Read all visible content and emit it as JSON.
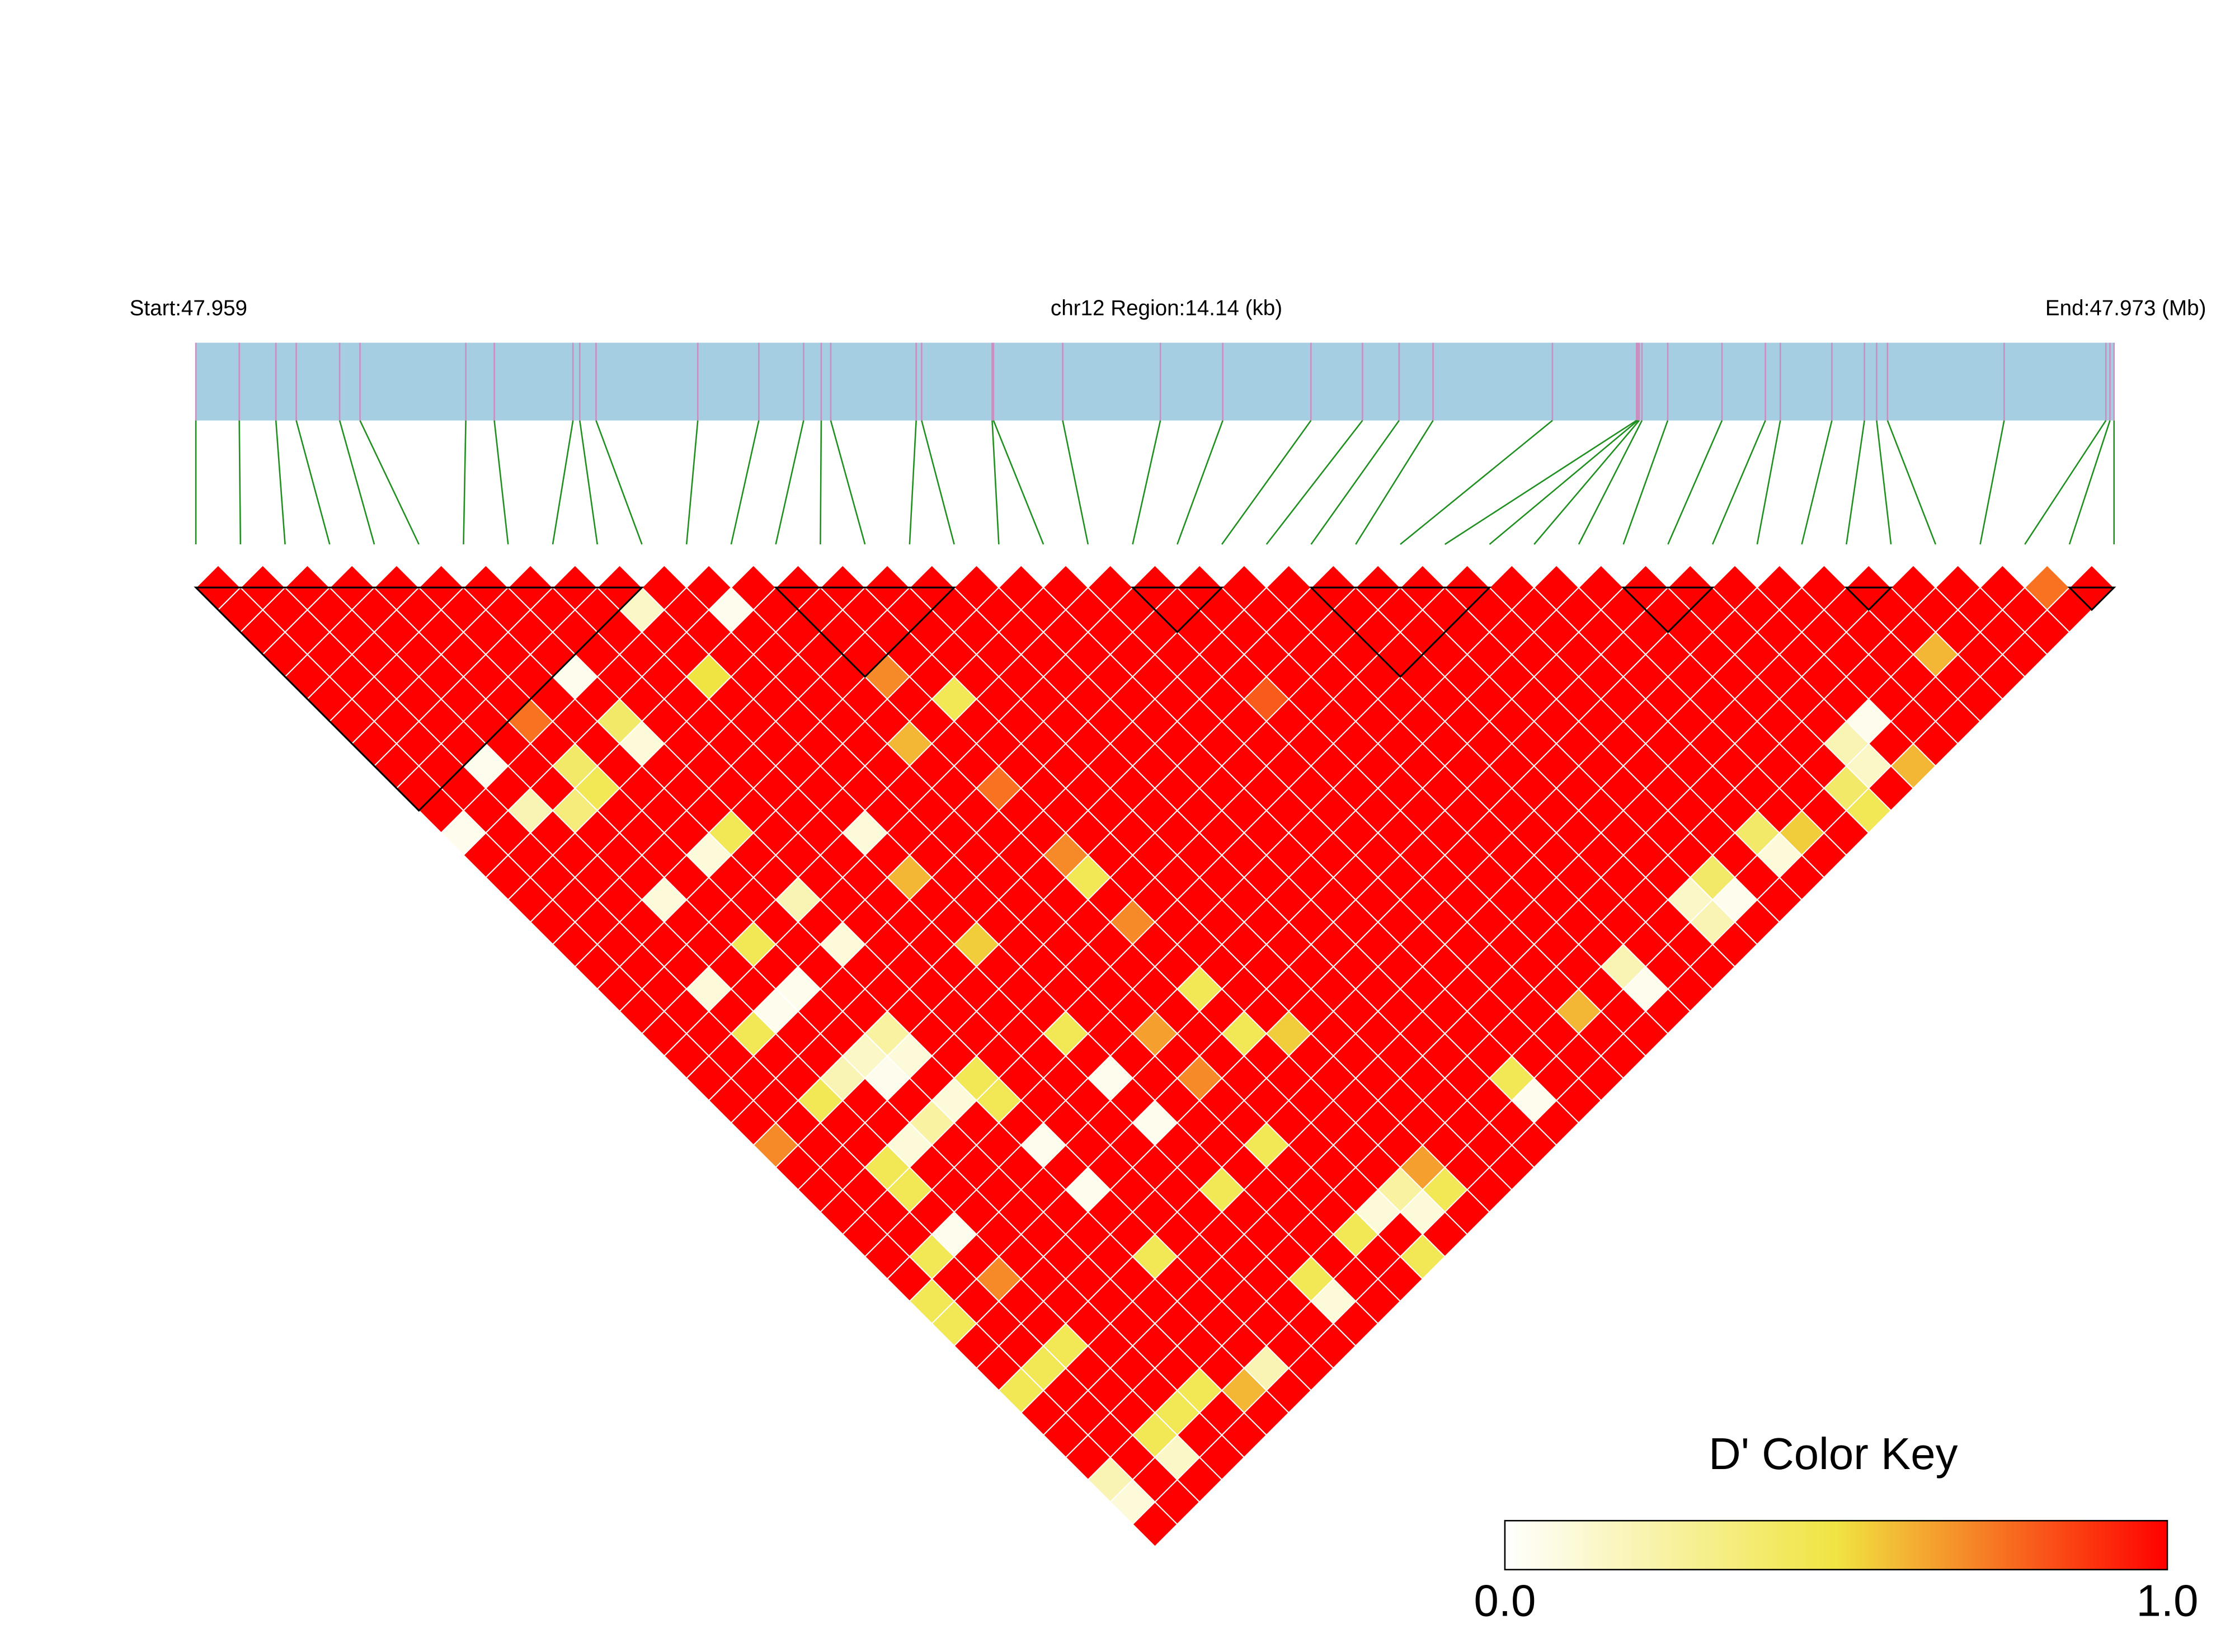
{
  "chart_data": {
    "type": "ld_heatmap",
    "start_label": "Start:47.959",
    "region_label": "chr12 Region:14.14 (kb)",
    "end_label": "End:47.973 (Mb)",
    "xlim": [
      0,
      14.14
    ],
    "bar_color": "#a6cee3",
    "snp_line_color": "#c98fbf",
    "connector_color": "#1f8f1f",
    "block_color": "#000000",
    "snp_positions_kb": [
      0,
      0.32,
      0.59,
      0.74,
      1.06,
      1.21,
      1.99,
      2.2,
      2.78,
      2.83,
      2.95,
      3.7,
      4.15,
      4.48,
      4.61,
      4.68,
      5.31,
      5.35,
      5.87,
      5.88,
      6.39,
      7.11,
      7.57,
      8.22,
      8.6,
      8.87,
      9.12,
      10.0,
      10.62,
      10.63,
      10.64,
      10.66,
      10.85,
      11.25,
      11.57,
      11.68,
      12.06,
      12.3,
      12.39,
      12.47,
      13.33,
      14.08,
      14.11,
      14.14
    ],
    "dprime": [
      [
        1,
        1,
        1,
        1,
        1,
        1,
        1,
        1,
        1,
        1,
        1,
        0.05,
        1,
        1,
        1,
        1,
        1,
        1,
        1,
        1,
        1,
        1,
        1,
        1,
        1,
        0.7,
        1,
        1,
        1,
        1,
        1,
        1,
        0.45,
        0.45,
        1,
        1,
        0.45,
        1,
        1,
        1,
        0.2,
        0.1,
        1
      ],
      [
        1,
        1,
        1,
        1,
        1,
        1,
        1,
        1,
        1,
        1,
        1,
        1,
        1,
        1,
        1,
        1,
        1,
        1,
        1,
        1,
        1,
        1,
        1,
        1,
        1,
        1,
        1,
        1,
        1,
        1,
        0.45,
        1,
        1,
        1,
        1,
        0.45,
        1,
        1,
        1,
        1,
        1,
        1
      ],
      [
        1,
        1,
        1,
        1,
        1,
        1,
        1,
        1,
        0.05,
        1,
        0.2,
        1,
        1,
        1,
        1,
        1,
        1,
        1,
        0.1,
        1,
        0.45,
        1,
        1,
        0.45,
        1,
        1,
        0.45,
        0.45,
        1,
        0.05,
        1,
        0.7,
        1,
        1,
        0.45,
        1,
        1,
        1,
        0.45,
        0.15,
        1
      ],
      [
        1,
        1,
        1,
        1,
        1,
        1,
        1,
        1,
        1,
        1,
        0.35,
        1,
        1,
        1,
        0.1,
        1,
        1,
        1,
        1,
        0.05,
        1,
        1,
        0.2,
        1,
        1,
        0.1,
        1,
        1,
        1,
        1,
        1,
        1,
        1,
        1,
        1,
        1,
        1,
        0.45,
        1,
        1
      ],
      [
        1,
        1,
        1,
        1,
        1,
        1,
        0.75,
        1,
        0.4,
        0.45,
        1,
        1,
        1,
        1,
        1,
        1,
        0.45,
        1,
        0.05,
        1,
        1,
        0.15,
        0.05,
        1,
        0.25,
        1,
        1,
        1,
        1,
        1,
        1,
        1,
        1,
        1,
        1,
        1,
        0.45,
        1,
        1
      ],
      [
        1,
        1,
        1,
        1,
        1,
        1,
        1,
        1,
        1,
        1,
        1,
        1,
        0.1,
        1,
        1,
        1,
        1,
        1,
        1,
        1,
        0.25,
        0.1,
        1,
        0.1,
        1,
        1,
        1,
        1,
        1,
        1,
        1,
        1,
        1,
        1,
        1,
        1,
        0.6,
        1
      ],
      [
        1,
        1,
        1,
        1,
        0.05,
        1,
        0.4,
        0.1,
        1,
        1,
        1,
        0.45,
        1,
        1,
        0.2,
        1,
        0.1,
        1,
        1,
        1,
        1,
        1,
        0.45,
        0.45,
        1,
        0.05,
        1,
        0.05,
        1,
        1,
        0.45,
        1,
        1,
        1,
        1,
        0.2,
        1
      ],
      [
        1,
        1,
        1,
        1,
        1,
        1,
        1,
        1,
        1,
        1,
        1,
        1,
        1,
        1,
        1,
        1,
        1,
        1,
        1,
        1,
        1,
        1,
        1,
        1,
        1,
        1,
        1,
        1,
        1,
        1,
        1,
        1,
        1,
        1,
        1,
        1
      ],
      [
        1,
        1,
        1,
        1,
        1,
        1,
        1,
        1,
        1,
        1,
        1,
        1,
        1,
        1,
        1,
        1,
        1,
        1,
        1,
        1,
        1,
        1,
        1,
        1,
        1,
        1,
        1,
        1,
        1,
        1,
        1,
        1,
        1,
        1,
        1
      ],
      [
        1,
        0.15,
        1,
        1,
        0.5,
        1,
        1,
        1,
        1,
        1,
        1,
        0.1,
        1,
        0.6,
        1,
        1,
        0.55,
        1,
        1,
        1,
        0.45,
        1,
        0.05,
        1,
        0.05,
        1,
        1,
        0.45,
        1,
        1,
        1,
        0.45,
        0.1,
        1
      ],
      [
        1,
        1,
        1,
        1,
        1,
        1,
        1,
        1,
        1,
        1,
        1,
        1,
        1,
        1,
        1,
        1,
        1,
        1,
        1,
        1,
        1,
        1,
        1,
        1,
        1,
        1,
        1,
        1,
        1,
        1,
        1,
        1,
        1
      ],
      [
        1,
        0.05,
        1,
        1,
        1,
        1,
        1,
        1,
        1,
        1,
        1,
        1,
        1,
        1,
        1,
        1,
        1,
        1,
        1,
        1,
        0.65,
        1,
        0.7,
        1,
        1,
        0.45,
        1,
        1,
        1,
        0.45,
        1,
        1
      ],
      [
        1,
        1,
        1,
        1,
        1,
        1,
        1,
        0.6,
        1,
        1,
        1,
        1,
        1,
        1,
        1,
        1,
        1,
        1,
        1,
        1,
        1,
        1,
        1,
        1,
        1,
        1,
        1,
        1,
        0.1,
        1,
        0.45
      ],
      [
        1,
        1,
        1,
        1,
        0.7,
        1,
        1,
        1,
        1,
        0.75,
        1,
        1,
        0.7,
        0.45,
        1,
        0.7,
        1,
        1,
        0.45,
        1,
        0.45,
        1,
        1,
        1,
        1,
        1,
        1,
        0.25,
        0.1,
        1
      ],
      [
        1,
        1,
        1,
        1,
        1,
        0.45,
        1,
        1,
        1,
        1,
        1,
        1,
        1,
        1,
        1,
        1,
        1,
        1,
        1,
        1,
        0.55,
        1,
        1,
        1,
        1,
        1,
        0.65,
        0.45,
        1
      ],
      [
        1,
        1,
        1,
        1,
        1,
        1,
        1,
        1,
        1,
        1,
        1,
        1,
        1,
        1,
        1,
        1,
        1,
        1,
        1,
        1,
        1,
        1,
        1,
        1,
        1,
        1,
        1,
        1
      ],
      [
        1,
        1,
        1,
        1,
        1,
        1,
        1,
        1,
        1,
        1,
        1,
        1,
        1,
        1,
        1,
        1,
        1,
        1,
        1,
        1,
        1,
        1,
        1,
        1,
        1,
        1,
        1
      ],
      [
        1,
        1,
        1,
        1,
        1,
        1,
        1,
        1,
        1,
        1,
        1,
        1,
        1,
        1,
        1,
        1,
        1,
        1,
        1,
        1,
        1,
        1,
        1,
        1,
        1,
        1
      ],
      [
        1,
        1,
        1,
        1,
        1,
        1,
        1,
        1,
        1,
        1,
        1,
        1,
        1,
        1,
        1,
        1,
        1,
        1,
        1,
        1,
        1,
        1,
        0.45,
        0.05,
        1
      ],
      [
        1,
        1,
        1,
        1,
        1,
        1,
        1,
        1,
        1,
        1,
        1,
        1,
        1,
        1,
        1,
        1,
        1,
        1,
        1,
        1,
        1,
        1,
        1,
        1
      ],
      [
        1,
        1,
        1,
        1,
        1,
        1,
        1,
        1,
        1,
        1,
        1,
        1,
        1,
        1,
        1,
        1,
        1,
        1,
        1,
        1,
        1,
        1,
        1
      ],
      [
        1,
        1,
        1,
        1,
        1,
        0.8,
        1,
        1,
        1,
        1,
        1,
        1,
        1,
        1,
        1,
        1,
        1,
        1,
        1,
        0.6,
        1,
        1
      ],
      [
        1,
        1,
        1,
        1,
        1,
        1,
        1,
        1,
        1,
        1,
        1,
        1,
        1,
        1,
        1,
        1,
        1,
        1,
        1,
        1,
        1
      ],
      [
        1,
        1,
        1,
        1,
        1,
        1,
        1,
        1,
        1,
        1,
        1,
        1,
        1,
        1,
        1,
        1,
        1,
        0.2,
        0.05,
        1
      ],
      [
        1,
        1,
        1,
        1,
        1,
        1,
        1,
        1,
        1,
        1,
        1,
        1,
        1,
        1,
        1,
        1,
        1,
        1,
        1
      ],
      [
        1,
        1,
        1,
        1,
        1,
        1,
        1,
        1,
        1,
        1,
        1,
        1,
        1,
        1,
        1,
        1,
        1,
        1
      ],
      [
        1,
        1,
        1,
        1,
        1,
        1,
        1,
        1,
        1,
        1,
        1,
        1,
        1,
        1,
        0.15,
        0.2,
        1
      ],
      [
        1,
        1,
        1,
        1,
        1,
        1,
        1,
        1,
        1,
        1,
        1,
        1,
        1,
        0.4,
        0.05,
        1
      ],
      [
        1,
        1,
        1,
        1,
        1,
        1,
        1,
        1,
        1,
        1,
        1,
        1,
        1,
        1,
        1
      ],
      [
        1,
        1,
        1,
        1,
        1,
        1,
        1,
        1,
        1,
        1,
        1,
        0.4,
        0.1,
        1
      ],
      [
        1,
        1,
        1,
        1,
        1,
        1,
        1,
        1,
        1,
        1,
        1,
        0.55,
        1
      ],
      [
        1,
        1,
        1,
        1,
        1,
        1,
        1,
        1,
        1,
        1,
        1,
        1
      ],
      [
        1,
        1,
        1,
        1,
        1,
        1,
        1,
        1,
        1,
        0.4,
        0.45
      ],
      [
        1,
        1,
        1,
        1,
        1,
        1,
        1,
        0.2,
        0.15,
        1
      ],
      [
        1,
        1,
        1,
        1,
        1,
        1,
        0.05,
        1,
        0.6
      ],
      [
        1,
        1,
        1,
        1,
        1,
        1,
        1,
        1
      ],
      [
        1,
        1,
        1,
        1,
        1,
        1,
        1
      ],
      [
        1,
        1,
        1,
        0.6,
        1,
        1
      ],
      [
        1,
        1,
        1,
        1,
        1
      ],
      [
        1,
        1,
        1,
        1
      ],
      [
        1,
        1,
        1
      ],
      [
        0.75,
        1
      ],
      [
        1
      ]
    ],
    "blocks": [
      [
        0,
        10
      ],
      [
        13,
        17
      ],
      [
        21,
        23
      ],
      [
        25,
        29
      ],
      [
        32,
        34
      ],
      [
        37,
        38
      ],
      [
        42,
        43
      ]
    ],
    "color_key": {
      "title": "D' Color Key",
      "clim": [
        0,
        1
      ],
      "colors": [
        "#ffffff",
        "#f0e442",
        "#ff0000"
      ],
      "ticks": [
        {
          "value": 0,
          "label": "0.0"
        },
        {
          "value": 1,
          "label": "1.0"
        }
      ]
    }
  }
}
